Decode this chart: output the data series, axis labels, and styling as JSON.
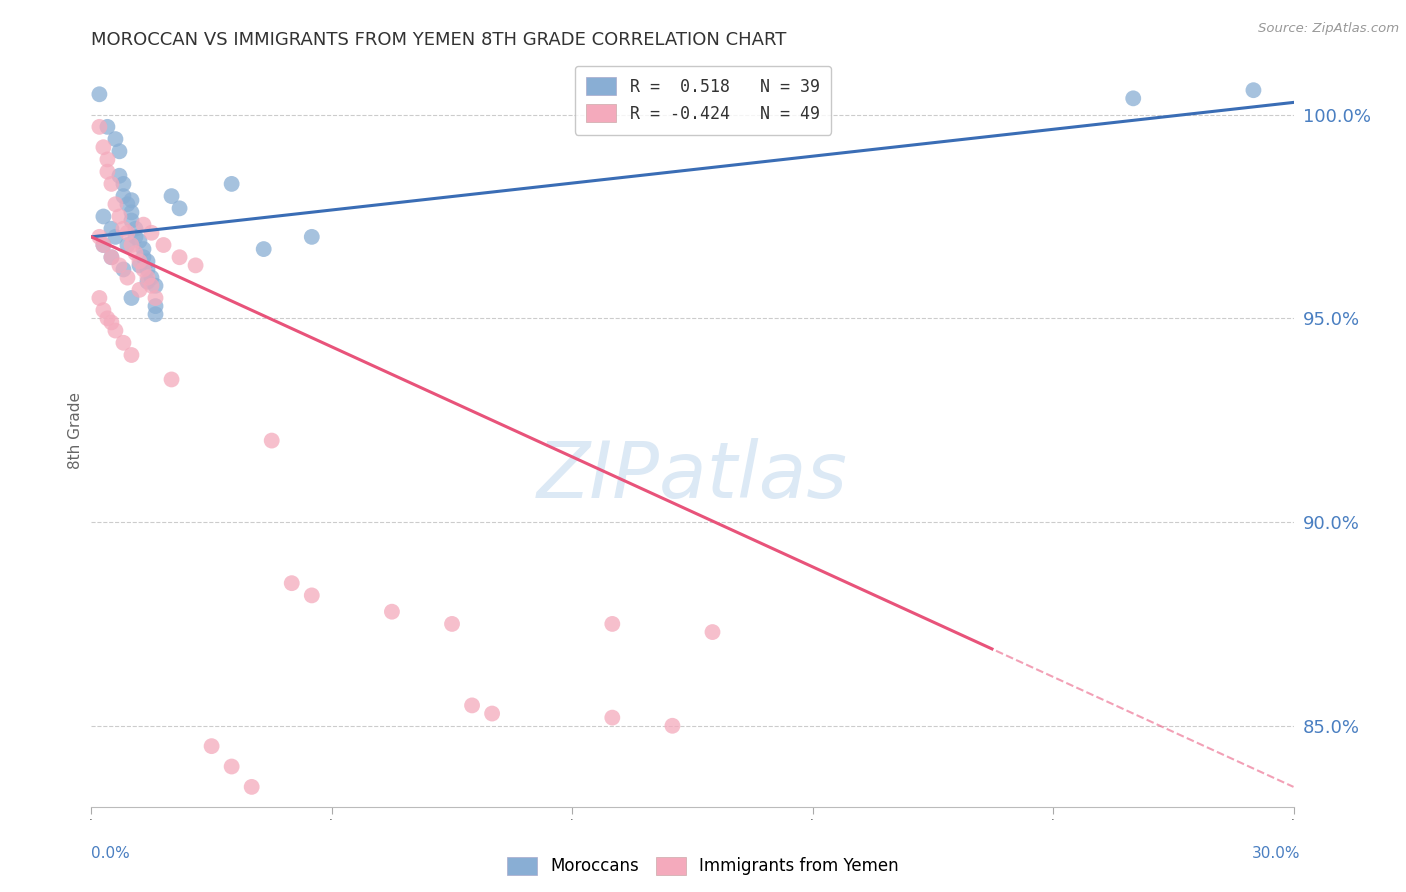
{
  "title": "MOROCCAN VS IMMIGRANTS FROM YEMEN 8TH GRADE CORRELATION CHART",
  "source": "Source: ZipAtlas.com",
  "ylabel": "8th Grade",
  "ylabel_right_ticks": [
    85.0,
    90.0,
    95.0,
    100.0
  ],
  "xmin": 0.0,
  "xmax": 0.3,
  "ymin": 83.0,
  "ymax": 101.5,
  "blue_R": 0.518,
  "blue_N": 39,
  "pink_R": -0.424,
  "pink_N": 49,
  "blue_color": "#89AED4",
  "pink_color": "#F4AABC",
  "blue_line_color": "#3A6DB5",
  "pink_line_color": "#E8537A",
  "blue_scatter": [
    [
      0.002,
      100.5
    ],
    [
      0.004,
      99.7
    ],
    [
      0.006,
      99.4
    ],
    [
      0.007,
      99.1
    ],
    [
      0.007,
      98.5
    ],
    [
      0.008,
      98.3
    ],
    [
      0.008,
      98.0
    ],
    [
      0.009,
      97.8
    ],
    [
      0.01,
      97.9
    ],
    [
      0.01,
      97.6
    ],
    [
      0.01,
      97.4
    ],
    [
      0.011,
      97.2
    ],
    [
      0.011,
      97.0
    ],
    [
      0.012,
      96.9
    ],
    [
      0.013,
      96.7
    ],
    [
      0.013,
      96.5
    ],
    [
      0.014,
      96.4
    ],
    [
      0.014,
      96.2
    ],
    [
      0.015,
      96.0
    ],
    [
      0.016,
      95.8
    ],
    [
      0.003,
      97.5
    ],
    [
      0.005,
      97.2
    ],
    [
      0.006,
      97.0
    ],
    [
      0.009,
      96.8
    ],
    [
      0.012,
      96.3
    ],
    [
      0.02,
      98.0
    ],
    [
      0.022,
      97.7
    ],
    [
      0.035,
      98.3
    ],
    [
      0.043,
      96.7
    ],
    [
      0.055,
      97.0
    ],
    [
      0.01,
      95.5
    ],
    [
      0.016,
      95.3
    ],
    [
      0.016,
      95.1
    ],
    [
      0.003,
      96.8
    ],
    [
      0.005,
      96.5
    ],
    [
      0.008,
      96.2
    ],
    [
      0.014,
      95.9
    ],
    [
      0.26,
      100.4
    ],
    [
      0.29,
      100.6
    ]
  ],
  "pink_scatter": [
    [
      0.002,
      99.7
    ],
    [
      0.003,
      99.2
    ],
    [
      0.004,
      98.9
    ],
    [
      0.004,
      98.6
    ],
    [
      0.005,
      98.3
    ],
    [
      0.006,
      97.8
    ],
    [
      0.007,
      97.5
    ],
    [
      0.008,
      97.2
    ],
    [
      0.009,
      97.1
    ],
    [
      0.01,
      96.8
    ],
    [
      0.011,
      96.6
    ],
    [
      0.012,
      96.4
    ],
    [
      0.013,
      96.2
    ],
    [
      0.014,
      96.0
    ],
    [
      0.015,
      95.8
    ],
    [
      0.016,
      95.5
    ],
    [
      0.002,
      97.0
    ],
    [
      0.003,
      96.8
    ],
    [
      0.005,
      96.5
    ],
    [
      0.007,
      96.3
    ],
    [
      0.009,
      96.0
    ],
    [
      0.012,
      95.7
    ],
    [
      0.002,
      95.5
    ],
    [
      0.003,
      95.2
    ],
    [
      0.005,
      94.9
    ],
    [
      0.013,
      97.3
    ],
    [
      0.015,
      97.1
    ],
    [
      0.018,
      96.8
    ],
    [
      0.022,
      96.5
    ],
    [
      0.026,
      96.3
    ],
    [
      0.004,
      95.0
    ],
    [
      0.006,
      94.7
    ],
    [
      0.008,
      94.4
    ],
    [
      0.01,
      94.1
    ],
    [
      0.02,
      93.5
    ],
    [
      0.045,
      92.0
    ],
    [
      0.05,
      88.5
    ],
    [
      0.055,
      88.2
    ],
    [
      0.075,
      87.8
    ],
    [
      0.09,
      87.5
    ],
    [
      0.095,
      85.5
    ],
    [
      0.1,
      85.3
    ],
    [
      0.13,
      85.2
    ],
    [
      0.145,
      85.0
    ],
    [
      0.03,
      84.5
    ],
    [
      0.035,
      84.0
    ],
    [
      0.04,
      83.5
    ],
    [
      0.13,
      87.5
    ],
    [
      0.155,
      87.3
    ]
  ],
  "background_color": "#FFFFFF",
  "grid_color": "#CCCCCC",
  "title_color": "#333333",
  "right_axis_color": "#4A7FC1",
  "watermark_color": "#DCE9F5"
}
